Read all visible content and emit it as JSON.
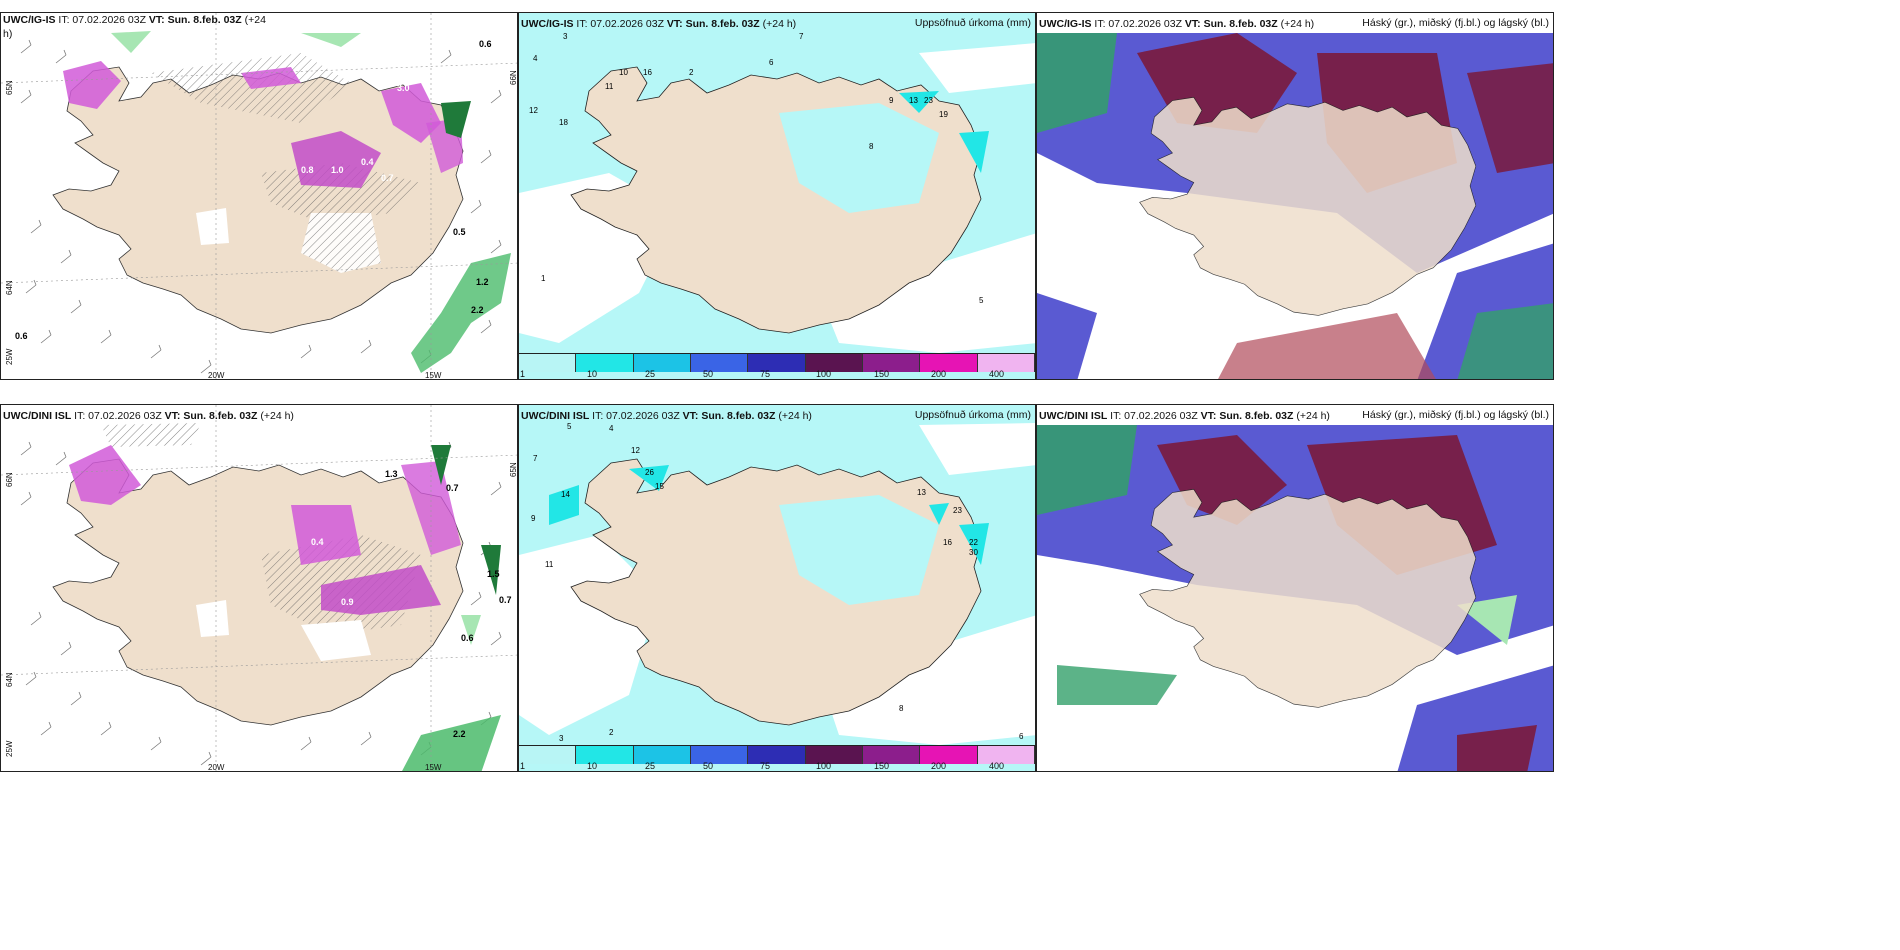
{
  "panels": {
    "tl": {
      "title_model": "UWC/IG-IS",
      "title_it": " IT: 07.02.2026 03Z ",
      "title_vt_label": "VT:",
      "title_vt": " Sun. 8.feb. 03Z",
      "title_lead": " (+24",
      "title_lead2": "h)",
      "axis_labels": [
        "20W",
        "15W",
        "65N",
        "64N",
        "25W",
        "66N"
      ],
      "values": [
        "0.6",
        "0.5",
        "0.6",
        "1.2",
        "3.0",
        "0.8",
        "1.0",
        "0.4",
        "0.7",
        "2.2"
      ]
    },
    "tm": {
      "title_model": "UWC/IG-IS",
      "title_it": " IT: 07.02.2026 03Z ",
      "title_vt_label": "VT:",
      "title_vt": " Sun. 8.feb. 03Z",
      "title_lead": " (+24 h)",
      "title_right": "Uppsöfnuð úrkoma (mm)",
      "values": [
        "3",
        "7",
        "4",
        "12",
        "11",
        "10",
        "16",
        "2",
        "6",
        "9",
        "13",
        "23",
        "19",
        "8",
        "1",
        "5",
        "18"
      ]
    },
    "tr": {
      "title_model": "UWC/IG-IS",
      "title_it": " IT: 07.02.2026 03Z ",
      "title_vt_label": "VT:",
      "title_vt": " Sun. 8.feb. 03Z",
      "title_lead": " (+24 h)",
      "title_right": "Háský (gr.), miðský (fj.bl.) og lágský (bl.)"
    },
    "bl": {
      "title_model": "UWC/DINI ISL",
      "title_it": " IT: 07.02.2026 03Z ",
      "title_vt_label": "VT:",
      "title_vt": " Sun. 8.feb. 03Z",
      "title_lead": " (+24 h)",
      "axis_labels": [
        "20W",
        "15W",
        "66N",
        "64N",
        "25W",
        "65N"
      ],
      "values": [
        "0.7",
        "0.6",
        "0.7",
        "1.5",
        "1.3",
        "2.2",
        "0.9",
        "0.4"
      ]
    },
    "bm": {
      "title_model": "UWC/DINI ISL",
      "title_it": " IT: 07.02.2026 03Z ",
      "title_vt_label": "VT:",
      "title_vt": " Sun. 8.feb. 03Z",
      "title_lead": " (+24 h)",
      "title_right": "Uppsöfnuð úrkoma (mm)",
      "values": [
        "5",
        "4",
        "12",
        "26",
        "15",
        "14",
        "7",
        "11",
        "9",
        "13",
        "23",
        "22",
        "30",
        "16",
        "3",
        "2",
        "6",
        "8"
      ]
    },
    "br": {
      "title_model": "UWC/DINI ISL",
      "title_it": " IT: 07.02.2026 03Z ",
      "title_vt_label": "VT:",
      "title_vt": " Sun. 8.feb. 03Z",
      "title_lead": " (+24 h)",
      "title_right": "Háský (gr.), miðský (fj.bl.) og lágský (bl.)"
    }
  },
  "colorbar": {
    "labels": [
      "1",
      "10",
      "25",
      "50",
      "75",
      "100",
      "150",
      "200",
      "400"
    ],
    "colors": [
      "#b8f5f5",
      "#22e6e6",
      "#1cc3e6",
      "#3a64e6",
      "#2d2db4",
      "#5a1450",
      "#8c1e8c",
      "#e614b4",
      "#f0b4f0"
    ]
  },
  "colors": {
    "land": "#efdfcc",
    "precip_light": "#b6f7f7",
    "snow": "#d15ad8",
    "green": "#4bbb6b",
    "cloud_blue": "#5a5ad2",
    "cloud_red": "#7a1a3c",
    "cloud_green": "#33a06a"
  }
}
